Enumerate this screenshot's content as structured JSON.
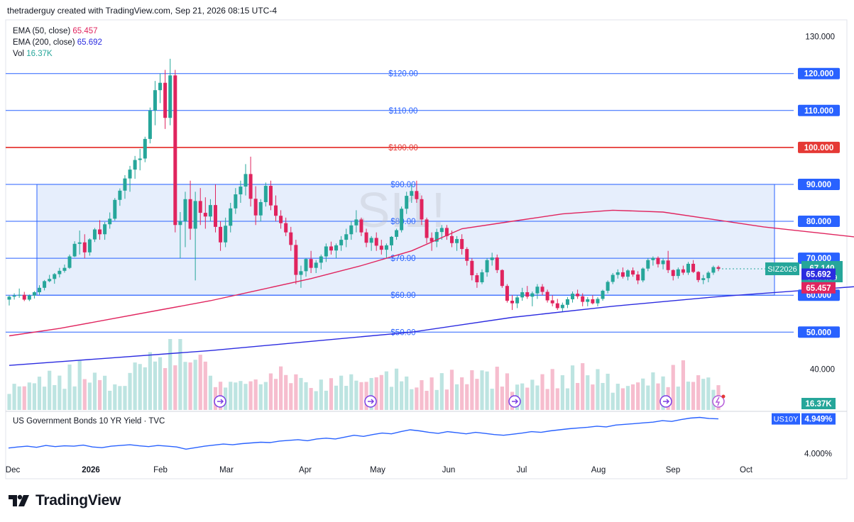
{
  "header": {
    "attribution": "thetraderguy created with TradingView.com, Sep 21, 2026 08:15 UTC-4"
  },
  "legend": {
    "ema50_label": "EMA (50, close)",
    "ema50_value": "65.457",
    "ema200_label": "EMA (200, close)",
    "ema200_value": "65.692",
    "vol_label": "Vol",
    "vol_value": "16.37K"
  },
  "watermark": "SI1!",
  "subchart": {
    "title": "US Government Bonds 10 YR Yield · TVC",
    "symbol": "US10Y",
    "value": "4.949%",
    "tick": "4.000%"
  },
  "brand": {
    "name": "TradingView"
  },
  "colors": {
    "up": "#26a69a",
    "down": "#e0245e",
    "ema50": "#e0245e",
    "ema200": "#2b2be0",
    "hline": "#2962ff",
    "redline": "#e53935",
    "box_fill": "#dde8fb"
  },
  "chart_data": [
    {
      "type": "candlestick",
      "symbol": "SIZ2026",
      "x": [
        "Dec",
        "2026",
        "Feb",
        "Mar",
        "Apr",
        "May",
        "Jun",
        "Jul",
        "Aug",
        "Sep",
        "Oct"
      ],
      "ylim": [
        37,
        133
      ],
      "y_ticks": [
        "130.000",
        "120.000",
        "110.000",
        "100.000",
        "90.000",
        "80.000",
        "70.000",
        "60.000",
        "50.000",
        "40.000"
      ],
      "horizontal_lines": [
        {
          "label": "$120.00",
          "axis_label": "120.000",
          "value": 120
        },
        {
          "label": "$110.00",
          "axis_label": "110.000",
          "value": 110
        },
        {
          "label": "$100.00",
          "axis_label": "100.000",
          "value": 100,
          "emphasis": true
        },
        {
          "label": "$90.00",
          "axis_label": "90.000",
          "value": 90
        },
        {
          "label": "$80.00",
          "axis_label": "80.000",
          "value": 80
        },
        {
          "label": "$70.00",
          "axis_label": "70.000",
          "value": 70
        },
        {
          "label": "$60.00",
          "axis_label": "60.000",
          "value": 60
        },
        {
          "label": "$50.00",
          "axis_label": "50.000",
          "value": 50
        }
      ],
      "range_box": {
        "low": 60,
        "high": 90
      },
      "current": {
        "symbol": "SIZ2026",
        "price": "67.140",
        "countdown": "08:44:59",
        "value": 67.14
      },
      "ema_labels": {
        "ema200": "65.692",
        "ema50": "65.457",
        "volume": "16.37K"
      },
      "candles": [
        [
          58.8,
          59.9,
          57.2,
          59.6
        ],
        [
          59.6,
          60.5,
          58.8,
          59.9
        ],
        [
          59.9,
          61.8,
          59.3,
          60.1
        ],
        [
          60.1,
          60.9,
          58.4,
          58.8
        ],
        [
          58.8,
          60.2,
          58.4,
          59.9
        ],
        [
          59.9,
          61.1,
          59.1,
          60.8
        ],
        [
          60.8,
          62.7,
          60.1,
          62.0
        ],
        [
          62.0,
          64.1,
          61.3,
          63.8
        ],
        [
          63.8,
          65.5,
          63.5,
          64.4
        ],
        [
          64.4,
          66.0,
          63.1,
          65.7
        ],
        [
          65.7,
          67.4,
          64.8,
          66.6
        ],
        [
          66.6,
          68.3,
          66.1,
          67.4
        ],
        [
          67.4,
          71.0,
          67.1,
          70.5
        ],
        [
          70.5,
          74.6,
          70.3,
          73.9
        ],
        [
          73.9,
          77.5,
          71.0,
          74.3
        ],
        [
          74.3,
          76.5,
          70.0,
          71.6
        ],
        [
          71.6,
          75.4,
          70.7,
          75.1
        ],
        [
          75.1,
          78.2,
          74.4,
          77.8
        ],
        [
          77.8,
          80.3,
          75.0,
          76.5
        ],
        [
          76.5,
          79.8,
          75.0,
          79.2
        ],
        [
          79.2,
          82.4,
          78.0,
          80.7
        ],
        [
          80.7,
          86.3,
          80.2,
          85.8
        ],
        [
          85.8,
          88.9,
          84.2,
          88.3
        ],
        [
          88.3,
          92.5,
          86.1,
          91.6
        ],
        [
          91.6,
          95.0,
          88.0,
          94.0
        ],
        [
          94.0,
          97.7,
          91.5,
          96.6
        ],
        [
          96.6,
          99.6,
          93.8,
          97.0
        ],
        [
          97.0,
          102.9,
          96.0,
          102.3
        ],
        [
          102.3,
          110.8,
          101.1,
          110.0
        ],
        [
          110.0,
          118.0,
          106.0,
          115.5
        ],
        [
          115.5,
          120.0,
          112.0,
          117.5
        ],
        [
          117.5,
          121.0,
          105.0,
          108.0
        ],
        [
          108.0,
          124.0,
          106.0,
          119.5
        ],
        [
          119.5,
          121.0,
          77.0,
          79.0
        ],
        [
          79.0,
          82.5,
          70.0,
          80.0
        ],
        [
          80.0,
          88.0,
          73.0,
          86.0
        ],
        [
          86.0,
          91.0,
          75.0,
          78.0
        ],
        [
          78.0,
          88.0,
          64.0,
          85.5
        ],
        [
          85.5,
          89.0,
          79.0,
          82.3
        ],
        [
          82.3,
          86.5,
          78.0,
          81.3
        ],
        [
          81.3,
          86.0,
          80.0,
          84.4
        ],
        [
          84.4,
          90.0,
          77.0,
          78.5
        ],
        [
          78.5,
          80.0,
          72.0,
          74.3
        ],
        [
          74.3,
          81.0,
          73.0,
          78.8
        ],
        [
          78.8,
          85.0,
          77.0,
          83.5
        ],
        [
          83.5,
          89.0,
          82.0,
          87.3
        ],
        [
          87.3,
          91.0,
          85.0,
          89.4
        ],
        [
          89.4,
          95.5,
          87.0,
          92.8
        ],
        [
          92.8,
          97.5,
          84.0,
          86.1
        ],
        [
          86.1,
          89.5,
          79.0,
          81.6
        ],
        [
          81.6,
          86.0,
          80.0,
          85.2
        ],
        [
          85.2,
          90.5,
          84.0,
          89.6
        ],
        [
          89.6,
          91.0,
          83.0,
          84.3
        ],
        [
          84.3,
          87.0,
          80.0,
          81.5
        ],
        [
          81.5,
          83.0,
          78.0,
          79.5
        ],
        [
          79.5,
          81.0,
          76.0,
          77.0
        ],
        [
          77.0,
          78.5,
          72.0,
          73.6
        ],
        [
          73.6,
          75.0,
          63.0,
          65.5
        ],
        [
          65.5,
          68.0,
          62.0,
          66.5
        ],
        [
          66.5,
          70.0,
          65.0,
          69.8
        ],
        [
          69.8,
          72.0,
          66.0,
          67.4
        ],
        [
          67.4,
          69.5,
          66.0,
          68.8
        ],
        [
          68.8,
          71.0,
          67.0,
          70.5
        ],
        [
          70.5,
          74.0,
          69.0,
          73.2
        ],
        [
          73.2,
          74.5,
          71.0,
          72.1
        ],
        [
          72.1,
          74.0,
          70.0,
          73.5
        ],
        [
          73.5,
          76.0,
          72.0,
          75.0
        ],
        [
          75.0,
          78.0,
          73.0,
          76.5
        ],
        [
          76.5,
          80.0,
          75.0,
          78.9
        ],
        [
          78.9,
          83.0,
          77.0,
          80.5
        ],
        [
          80.5,
          81.0,
          76.0,
          77.0
        ],
        [
          77.0,
          78.0,
          73.0,
          74.2
        ],
        [
          74.2,
          76.0,
          72.0,
          75.5
        ],
        [
          75.5,
          77.0,
          72.0,
          73.4
        ],
        [
          73.4,
          75.0,
          71.0,
          72.3
        ],
        [
          72.3,
          74.0,
          70.0,
          73.5
        ],
        [
          73.5,
          76.0,
          72.0,
          75.8
        ],
        [
          75.8,
          78.0,
          75.0,
          77.6
        ],
        [
          77.6,
          84.0,
          77.0,
          83.4
        ],
        [
          83.4,
          88.0,
          82.0,
          86.9
        ],
        [
          86.9,
          90.0,
          85.0,
          88.2
        ],
        [
          88.2,
          91.0,
          85.0,
          86.0
        ],
        [
          86.0,
          87.0,
          79.0,
          80.5
        ],
        [
          80.5,
          81.0,
          74.0,
          75.5
        ],
        [
          75.5,
          77.0,
          72.0,
          74.5
        ],
        [
          74.5,
          78.0,
          73.0,
          77.1
        ],
        [
          77.1,
          79.0,
          75.0,
          78.2
        ],
        [
          78.2,
          79.0,
          75.0,
          76.0
        ],
        [
          76.0,
          77.5,
          73.0,
          74.1
        ],
        [
          74.1,
          76.0,
          72.0,
          75.2
        ],
        [
          75.2,
          76.5,
          71.0,
          72.5
        ],
        [
          72.5,
          73.0,
          68.0,
          69.3
        ],
        [
          69.3,
          70.0,
          64.0,
          65.4
        ],
        [
          65.4,
          66.0,
          62.0,
          63.5
        ],
        [
          63.5,
          67.0,
          63.0,
          66.2
        ],
        [
          66.2,
          70.0,
          65.0,
          69.5
        ],
        [
          69.5,
          71.5,
          68.0,
          70.2
        ],
        [
          70.2,
          71.0,
          66.0,
          66.8
        ],
        [
          66.8,
          67.0,
          62.0,
          62.5
        ],
        [
          62.5,
          63.0,
          58.0,
          58.5
        ],
        [
          58.5,
          60.0,
          56.0,
          57.8
        ],
        [
          57.8,
          60.0,
          56.5,
          59.4
        ],
        [
          59.4,
          62.0,
          58.5,
          60.8
        ],
        [
          60.8,
          62.5,
          59.0,
          59.6
        ],
        [
          59.6,
          61.0,
          57.0,
          60.5
        ],
        [
          60.5,
          63.0,
          59.0,
          62.3
        ],
        [
          62.3,
          63.0,
          60.0,
          60.9
        ],
        [
          60.9,
          61.5,
          58.0,
          58.6
        ],
        [
          58.6,
          60.0,
          57.0,
          57.8
        ],
        [
          57.8,
          59.0,
          56.0,
          56.5
        ],
        [
          56.5,
          58.0,
          55.5,
          57.4
        ],
        [
          57.4,
          59.5,
          56.5,
          58.9
        ],
        [
          58.9,
          61.0,
          58.0,
          60.4
        ],
        [
          60.4,
          61.5,
          59.0,
          59.7
        ],
        [
          59.7,
          60.5,
          57.0,
          58.2
        ],
        [
          58.2,
          59.5,
          57.0,
          58.9
        ],
        [
          58.9,
          60.0,
          57.5,
          57.8
        ],
        [
          57.8,
          59.5,
          57.0,
          59.0
        ],
        [
          59.0,
          61.5,
          58.5,
          61.2
        ],
        [
          61.2,
          64.0,
          60.5,
          63.6
        ],
        [
          63.6,
          66.0,
          63.0,
          65.5
        ],
        [
          65.5,
          67.0,
          64.5,
          66.2
        ],
        [
          66.2,
          67.5,
          64.5,
          65.0
        ],
        [
          65.0,
          67.0,
          64.0,
          66.7
        ],
        [
          66.7,
          67.5,
          65.0,
          65.6
        ],
        [
          65.6,
          66.5,
          63.0,
          64.0
        ],
        [
          64.0,
          67.5,
          63.5,
          67.2
        ],
        [
          67.2,
          70.0,
          66.5,
          69.5
        ],
        [
          69.5,
          70.5,
          68.0,
          70.1
        ],
        [
          70.1,
          70.5,
          67.5,
          68.4
        ],
        [
          68.4,
          70.0,
          67.0,
          69.4
        ],
        [
          69.4,
          72.0,
          66.0,
          66.8
        ],
        [
          66.8,
          67.0,
          64.0,
          65.2
        ],
        [
          65.2,
          67.5,
          64.5,
          67.0
        ],
        [
          67.0,
          68.0,
          65.5,
          66.1
        ],
        [
          66.1,
          69.0,
          65.5,
          68.5
        ],
        [
          68.5,
          69.5,
          66.0,
          66.3
        ],
        [
          66.3,
          66.5,
          63.5,
          64.1
        ],
        [
          64.1,
          65.5,
          63.0,
          64.6
        ],
        [
          64.6,
          66.5,
          63.5,
          66.1
        ],
        [
          66.1,
          68.0,
          65.5,
          67.6
        ],
        [
          67.6,
          68.0,
          66.5,
          67.14
        ]
      ],
      "ema50": [
        [
          0,
          49
        ],
        [
          10,
          51
        ],
        [
          20,
          53.5
        ],
        [
          30,
          56
        ],
        [
          40,
          58.5
        ],
        [
          50,
          61.5
        ],
        [
          60,
          64.5
        ],
        [
          70,
          68
        ],
        [
          80,
          72
        ],
        [
          90,
          78
        ],
        [
          100,
          80
        ],
        [
          110,
          82
        ],
        [
          120,
          83
        ],
        [
          130,
          82.5
        ],
        [
          140,
          80.5
        ],
        [
          150,
          78.5
        ],
        [
          160,
          77
        ],
        [
          170,
          75.5
        ],
        [
          180,
          74.5
        ],
        [
          190,
          74.5
        ],
        [
          200,
          75.8
        ],
        [
          210,
          76.5
        ],
        [
          220,
          76.2
        ],
        [
          230,
          75.4
        ],
        [
          240,
          74.5
        ],
        [
          250,
          72.5
        ],
        [
          260,
          70.5
        ],
        [
          270,
          68.5
        ],
        [
          280,
          67
        ],
        [
          290,
          65
        ],
        [
          300,
          63
        ],
        [
          310,
          62.2
        ],
        [
          320,
          62.5
        ],
        [
          330,
          63.5
        ],
        [
          340,
          64.8
        ],
        [
          350,
          65.5
        ],
        [
          360,
          65.7
        ]
      ],
      "ema200": [
        [
          0,
          41
        ],
        [
          20,
          43
        ],
        [
          40,
          45
        ],
        [
          60,
          47.5
        ],
        [
          80,
          50
        ],
        [
          100,
          54
        ],
        [
          120,
          57
        ],
        [
          140,
          59.5
        ],
        [
          160,
          61.5
        ],
        [
          180,
          63.5
        ],
        [
          200,
          65.5
        ],
        [
          220,
          67
        ],
        [
          240,
          68
        ],
        [
          250,
          68.2
        ],
        [
          260,
          68
        ],
        [
          270,
          67.5
        ],
        [
          280,
          66.8
        ],
        [
          290,
          66.2
        ],
        [
          300,
          65.8
        ],
        [
          310,
          65.6
        ],
        [
          320,
          65.5
        ],
        [
          340,
          65.6
        ],
        [
          360,
          65.7
        ]
      ],
      "volume_pattern": [
        0.35,
        0.45,
        0.55,
        0.4,
        0.6,
        0.5,
        0.7,
        0.45,
        0.8,
        0.55,
        0.65,
        0.5,
        0.9,
        0.6,
        1.0,
        0.75,
        0.5,
        0.85,
        0.6,
        0.7
      ]
    },
    {
      "type": "line",
      "title": "US Government Bonds 10 YR Yield · TVC",
      "symbol": "US10Y",
      "last_value": 4.949,
      "y_ticks": [
        "4.000%"
      ],
      "ylim": [
        3.95,
        5.0
      ],
      "values": [
        4.15,
        4.18,
        4.2,
        4.17,
        4.22,
        4.19,
        4.21,
        4.2,
        4.23,
        4.18,
        4.16,
        4.2,
        4.22,
        4.24,
        4.21,
        4.19,
        4.22,
        4.2,
        4.18,
        4.12,
        4.16,
        4.2,
        4.23,
        4.26,
        4.24,
        4.27,
        4.29,
        4.31,
        4.3,
        4.34,
        4.36,
        4.38,
        4.35,
        4.4,
        4.42,
        4.4,
        4.45,
        4.5,
        4.47,
        4.52,
        4.56,
        4.54,
        4.6,
        4.65,
        4.62,
        4.58,
        4.55,
        4.6,
        4.57,
        4.54,
        4.58,
        4.55,
        4.52,
        4.5,
        4.53,
        4.56,
        4.6,
        4.58,
        4.62,
        4.65,
        4.68,
        4.7,
        4.72,
        4.75,
        4.73,
        4.78,
        4.8,
        4.82,
        4.84,
        4.86,
        4.9,
        4.88,
        4.93,
        4.97,
        4.99,
        4.96,
        4.949
      ]
    }
  ]
}
